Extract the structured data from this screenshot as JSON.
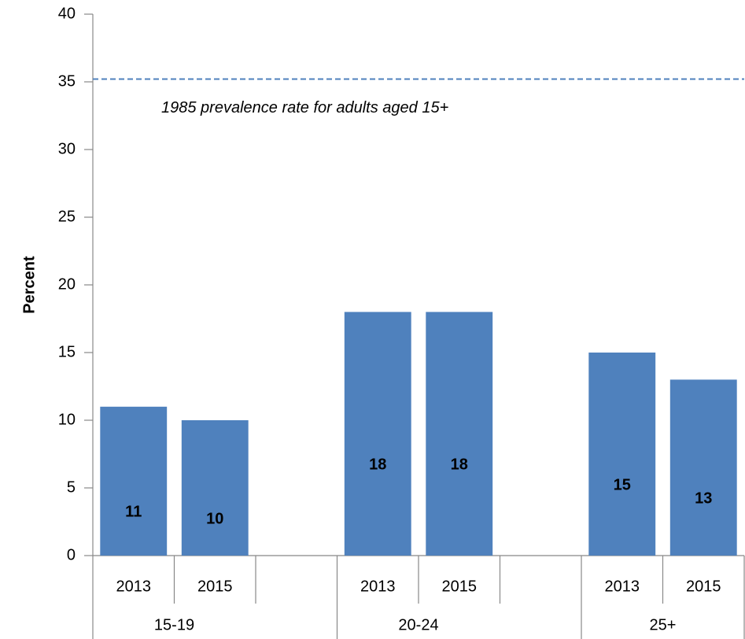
{
  "chart_data": {
    "type": "bar",
    "y_label": "Percent",
    "groups": [
      "15-19",
      "20-24",
      "25+"
    ],
    "categories": [
      "2013",
      "2015",
      null,
      "2013",
      "2015",
      null,
      "2013",
      "2015"
    ],
    "values": [
      11,
      10,
      null,
      18,
      18,
      null,
      15,
      13
    ],
    "color": "#4f81bd",
    "ylim": [
      0,
      40
    ],
    "yticks": [
      0,
      5,
      10,
      15,
      20,
      25,
      30,
      35,
      40
    ],
    "reference_line": {
      "value": 35.2,
      "label": "1985 prevalence rate for adults aged 15+",
      "color": "#4f81bd"
    }
  }
}
